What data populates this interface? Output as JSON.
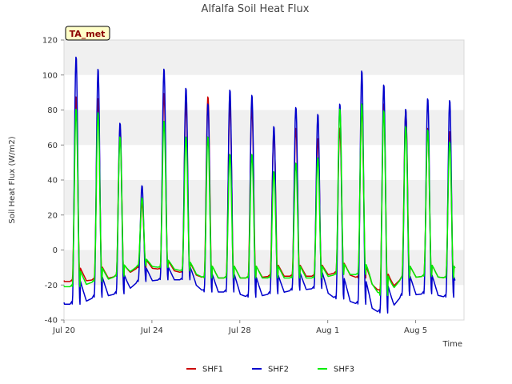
{
  "chart_data": {
    "type": "line",
    "title": "Alfalfa Soil Heat Flux",
    "xlabel": "Time",
    "ylabel": "Soil Heat Flux (W/m2)",
    "badge": "TA_met",
    "x_start": "Jul 20",
    "x_range_days": [
      0,
      18.2
    ],
    "ylim": [
      -40,
      120
    ],
    "yticks": [
      -40,
      -20,
      0,
      20,
      40,
      60,
      80,
      100,
      120
    ],
    "xticks": [
      {
        "day": 0,
        "label": "Jul 20"
      },
      {
        "day": 4,
        "label": "Jul 24"
      },
      {
        "day": 8,
        "label": "Jul 28"
      },
      {
        "day": 12,
        "label": "Aug 1"
      },
      {
        "day": 16,
        "label": "Aug 5"
      }
    ],
    "grid": "horizontal bands",
    "legend_position": "bottom-center",
    "series": [
      {
        "name": "SHF1",
        "color": "#cc0000",
        "daily_peak": [
          88,
          87,
          70,
          27,
          90,
          85,
          88,
          84,
          82,
          68,
          70,
          64,
          70,
          82,
          84,
          80,
          70,
          68
        ],
        "daily_min": [
          -18,
          -17,
          -15,
          -10,
          -11,
          -13,
          -16,
          -16,
          -16,
          -15,
          -15,
          -15,
          -13,
          -16,
          -24,
          -16,
          -15,
          -16
        ]
      },
      {
        "name": "SHF2",
        "color": "#0000cc",
        "daily_peak": [
          111,
          104,
          73,
          37,
          104,
          93,
          84,
          92,
          89,
          71,
          82,
          78,
          84,
          103,
          95,
          81,
          87,
          86
        ],
        "daily_min": [
          -31,
          -27,
          -25,
          -18,
          -17,
          -17,
          -24,
          -24,
          -27,
          -25,
          -23,
          -22,
          -28,
          -31,
          -36,
          -26,
          -25,
          -27
        ]
      },
      {
        "name": "SHF3",
        "color": "#00ee00",
        "daily_peak": [
          81,
          79,
          65,
          30,
          74,
          65,
          65,
          55,
          55,
          45,
          50,
          53,
          81,
          84,
          80,
          71,
          69,
          62
        ],
        "daily_min": [
          -21,
          -18,
          -15,
          -9,
          -10,
          -12,
          -16,
          -16,
          -16,
          -16,
          -16,
          -16,
          -14,
          -14,
          -26,
          -16,
          -15,
          -16
        ]
      }
    ]
  }
}
